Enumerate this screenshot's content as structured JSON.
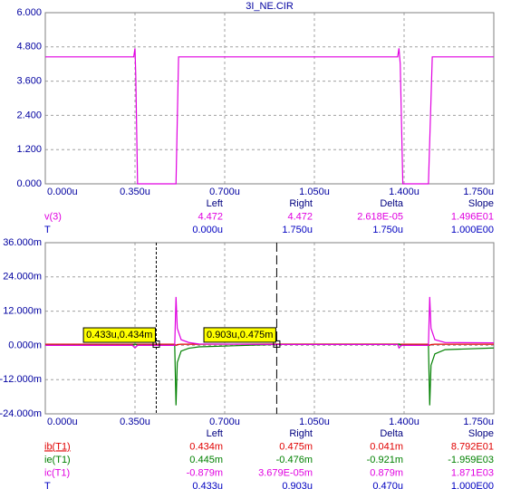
{
  "chart_data": [
    {
      "type": "line",
      "title": "3I_NE.CIR",
      "xlim": [
        0,
        1.75
      ],
      "xticks": [
        {
          "value": 0,
          "label": "0.000u"
        },
        {
          "value": 0.35,
          "label": "0.350u"
        },
        {
          "value": 0.7,
          "label": "0.700u"
        },
        {
          "value": 1.05,
          "label": "1.050u"
        },
        {
          "value": 1.4,
          "label": "1.400u"
        },
        {
          "value": 1.75,
          "label": "1.750u"
        }
      ],
      "ylim": [
        0,
        6
      ],
      "yticks": [
        {
          "value": 0,
          "label": "0.000"
        },
        {
          "value": 1.2,
          "label": "1.200"
        },
        {
          "value": 2.4,
          "label": "2.400"
        },
        {
          "value": 3.6,
          "label": "3.600"
        },
        {
          "value": 4.8,
          "label": "4.800"
        },
        {
          "value": 6,
          "label": "6.000"
        }
      ],
      "grid": true,
      "x": [
        0,
        0.345,
        0.35,
        0.353,
        0.36,
        0.51,
        0.52,
        1.375,
        1.38,
        1.385,
        1.395,
        1.495,
        1.51,
        1.75
      ],
      "series": [
        {
          "name": "v(3)",
          "color": "#e000e0",
          "values": [
            4.45,
            4.45,
            4.75,
            3.8,
            0,
            0,
            4.45,
            4.45,
            4.75,
            4.2,
            0,
            0,
            4.45,
            4.45
          ],
          "readout": [
            "4.472",
            "4.472",
            "2.618E-05",
            "1.496E01"
          ]
        }
      ],
      "readout": {
        "columns": [
          "Left",
          "Right",
          "Delta",
          "Slope"
        ],
        "time_row": {
          "label": "T",
          "cells": [
            "0.000u",
            "1.750u",
            "1.750u",
            "1.000E00"
          ]
        }
      }
    },
    {
      "type": "line",
      "xlim": [
        0,
        1.75
      ],
      "xticks": [
        {
          "value": 0,
          "label": "0.000u"
        },
        {
          "value": 0.35,
          "label": "0.350u"
        },
        {
          "value": 0.7,
          "label": "0.700u"
        },
        {
          "value": 1.05,
          "label": "1.050u"
        },
        {
          "value": 1.4,
          "label": "1.400u"
        },
        {
          "value": 1.75,
          "label": "1.750u"
        }
      ],
      "ylim": [
        -24,
        36
      ],
      "yticks": [
        {
          "value": -24,
          "label": "-24.000m"
        },
        {
          "value": -12,
          "label": "-12.000m"
        },
        {
          "value": 0,
          "label": "0.000m"
        },
        {
          "value": 12,
          "label": "12.000m"
        },
        {
          "value": 24,
          "label": "24.000m"
        },
        {
          "value": 36,
          "label": "36.000m"
        }
      ],
      "grid": true,
      "x": [
        0,
        0.34,
        0.35,
        0.36,
        0.505,
        0.51,
        0.515,
        0.53,
        0.56,
        0.6,
        0.9,
        1.375,
        1.38,
        1.39,
        1.495,
        1.5,
        1.505,
        1.52,
        1.56,
        1.75
      ],
      "series": [
        {
          "name": "ib(T1)",
          "color": "#e00000",
          "values": [
            0.4,
            0.4,
            0.4,
            0.4,
            0.4,
            0,
            0.3,
            0.4,
            0.4,
            0.4,
            0.45,
            0.45,
            0.4,
            0.4,
            0.4,
            0,
            0.3,
            0.4,
            0.4,
            0.4
          ],
          "readout": [
            "0.434m",
            "0.475m",
            "0.041m",
            "8.792E01"
          ]
        },
        {
          "name": "ie(T1)",
          "color": "#008000",
          "values": [
            0,
            0,
            0.5,
            0,
            0,
            -21,
            -6,
            -2,
            -1,
            -0.5,
            0.3,
            0.3,
            0.5,
            0,
            0,
            -21,
            -7,
            -3,
            -1.5,
            -0.9
          ],
          "readout": [
            "0.445m",
            "-0.476m",
            "-0.921m",
            "-1.959E03"
          ]
        },
        {
          "name": "ic(T1)",
          "color": "#e000e0",
          "values": [
            0,
            0,
            -0.9,
            0,
            0,
            17,
            6,
            2,
            1,
            0.5,
            0.3,
            0.3,
            -0.9,
            0,
            0,
            17,
            6,
            2,
            1,
            0.9
          ],
          "readout": [
            "-0.879m",
            "3.679E-05m",
            "0.879m",
            "1.871E03"
          ]
        }
      ],
      "cursors": [
        {
          "x": 0.433,
          "y": 0.434,
          "label": "0.433u,0.434m"
        },
        {
          "x": 0.903,
          "y": 0.475,
          "label": "0.903u,0.475m"
        }
      ],
      "readout": {
        "columns": [
          "Left",
          "Right",
          "Delta",
          "Slope"
        ],
        "time_row": {
          "label": "T",
          "cells": [
            "0.433u",
            "0.903u",
            "0.470u",
            "1.000E00"
          ]
        }
      }
    }
  ]
}
